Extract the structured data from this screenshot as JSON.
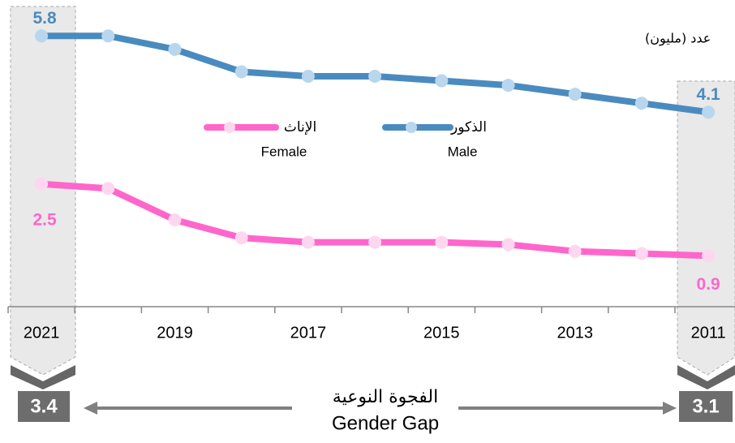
{
  "chart_data": {
    "type": "line",
    "y_label": "عدد (مليون)",
    "x": [
      2021,
      2020,
      2019,
      2018,
      2017,
      2016,
      2015,
      2014,
      2013,
      2012,
      2011
    ],
    "xlim": [
      2021.5,
      2010.6
    ],
    "xticks": [
      2021,
      2019,
      2017,
      2015,
      2013,
      2011
    ],
    "ylim": [
      0,
      6.6
    ],
    "series": [
      {
        "name": "الذكور",
        "name_en": "Male",
        "color": "#4a8bbf",
        "marker_color": "#b8d6ee",
        "values": [
          5.8,
          5.8,
          5.5,
          5.0,
          4.9,
          4.9,
          4.8,
          4.7,
          4.5,
          4.3,
          4.1
        ]
      },
      {
        "name": "الإناث",
        "name_en": "Female",
        "color": "#ff66cc",
        "marker_color": "#ffd6f0",
        "values": [
          2.5,
          2.4,
          1.7,
          1.3,
          1.2,
          1.2,
          1.2,
          1.15,
          1.0,
          0.95,
          0.9
        ]
      }
    ],
    "gap": {
      "label_ar": "الفجوة النوعية",
      "label_en": "Gender Gap",
      "start": 3.4,
      "end": 3.1
    }
  }
}
